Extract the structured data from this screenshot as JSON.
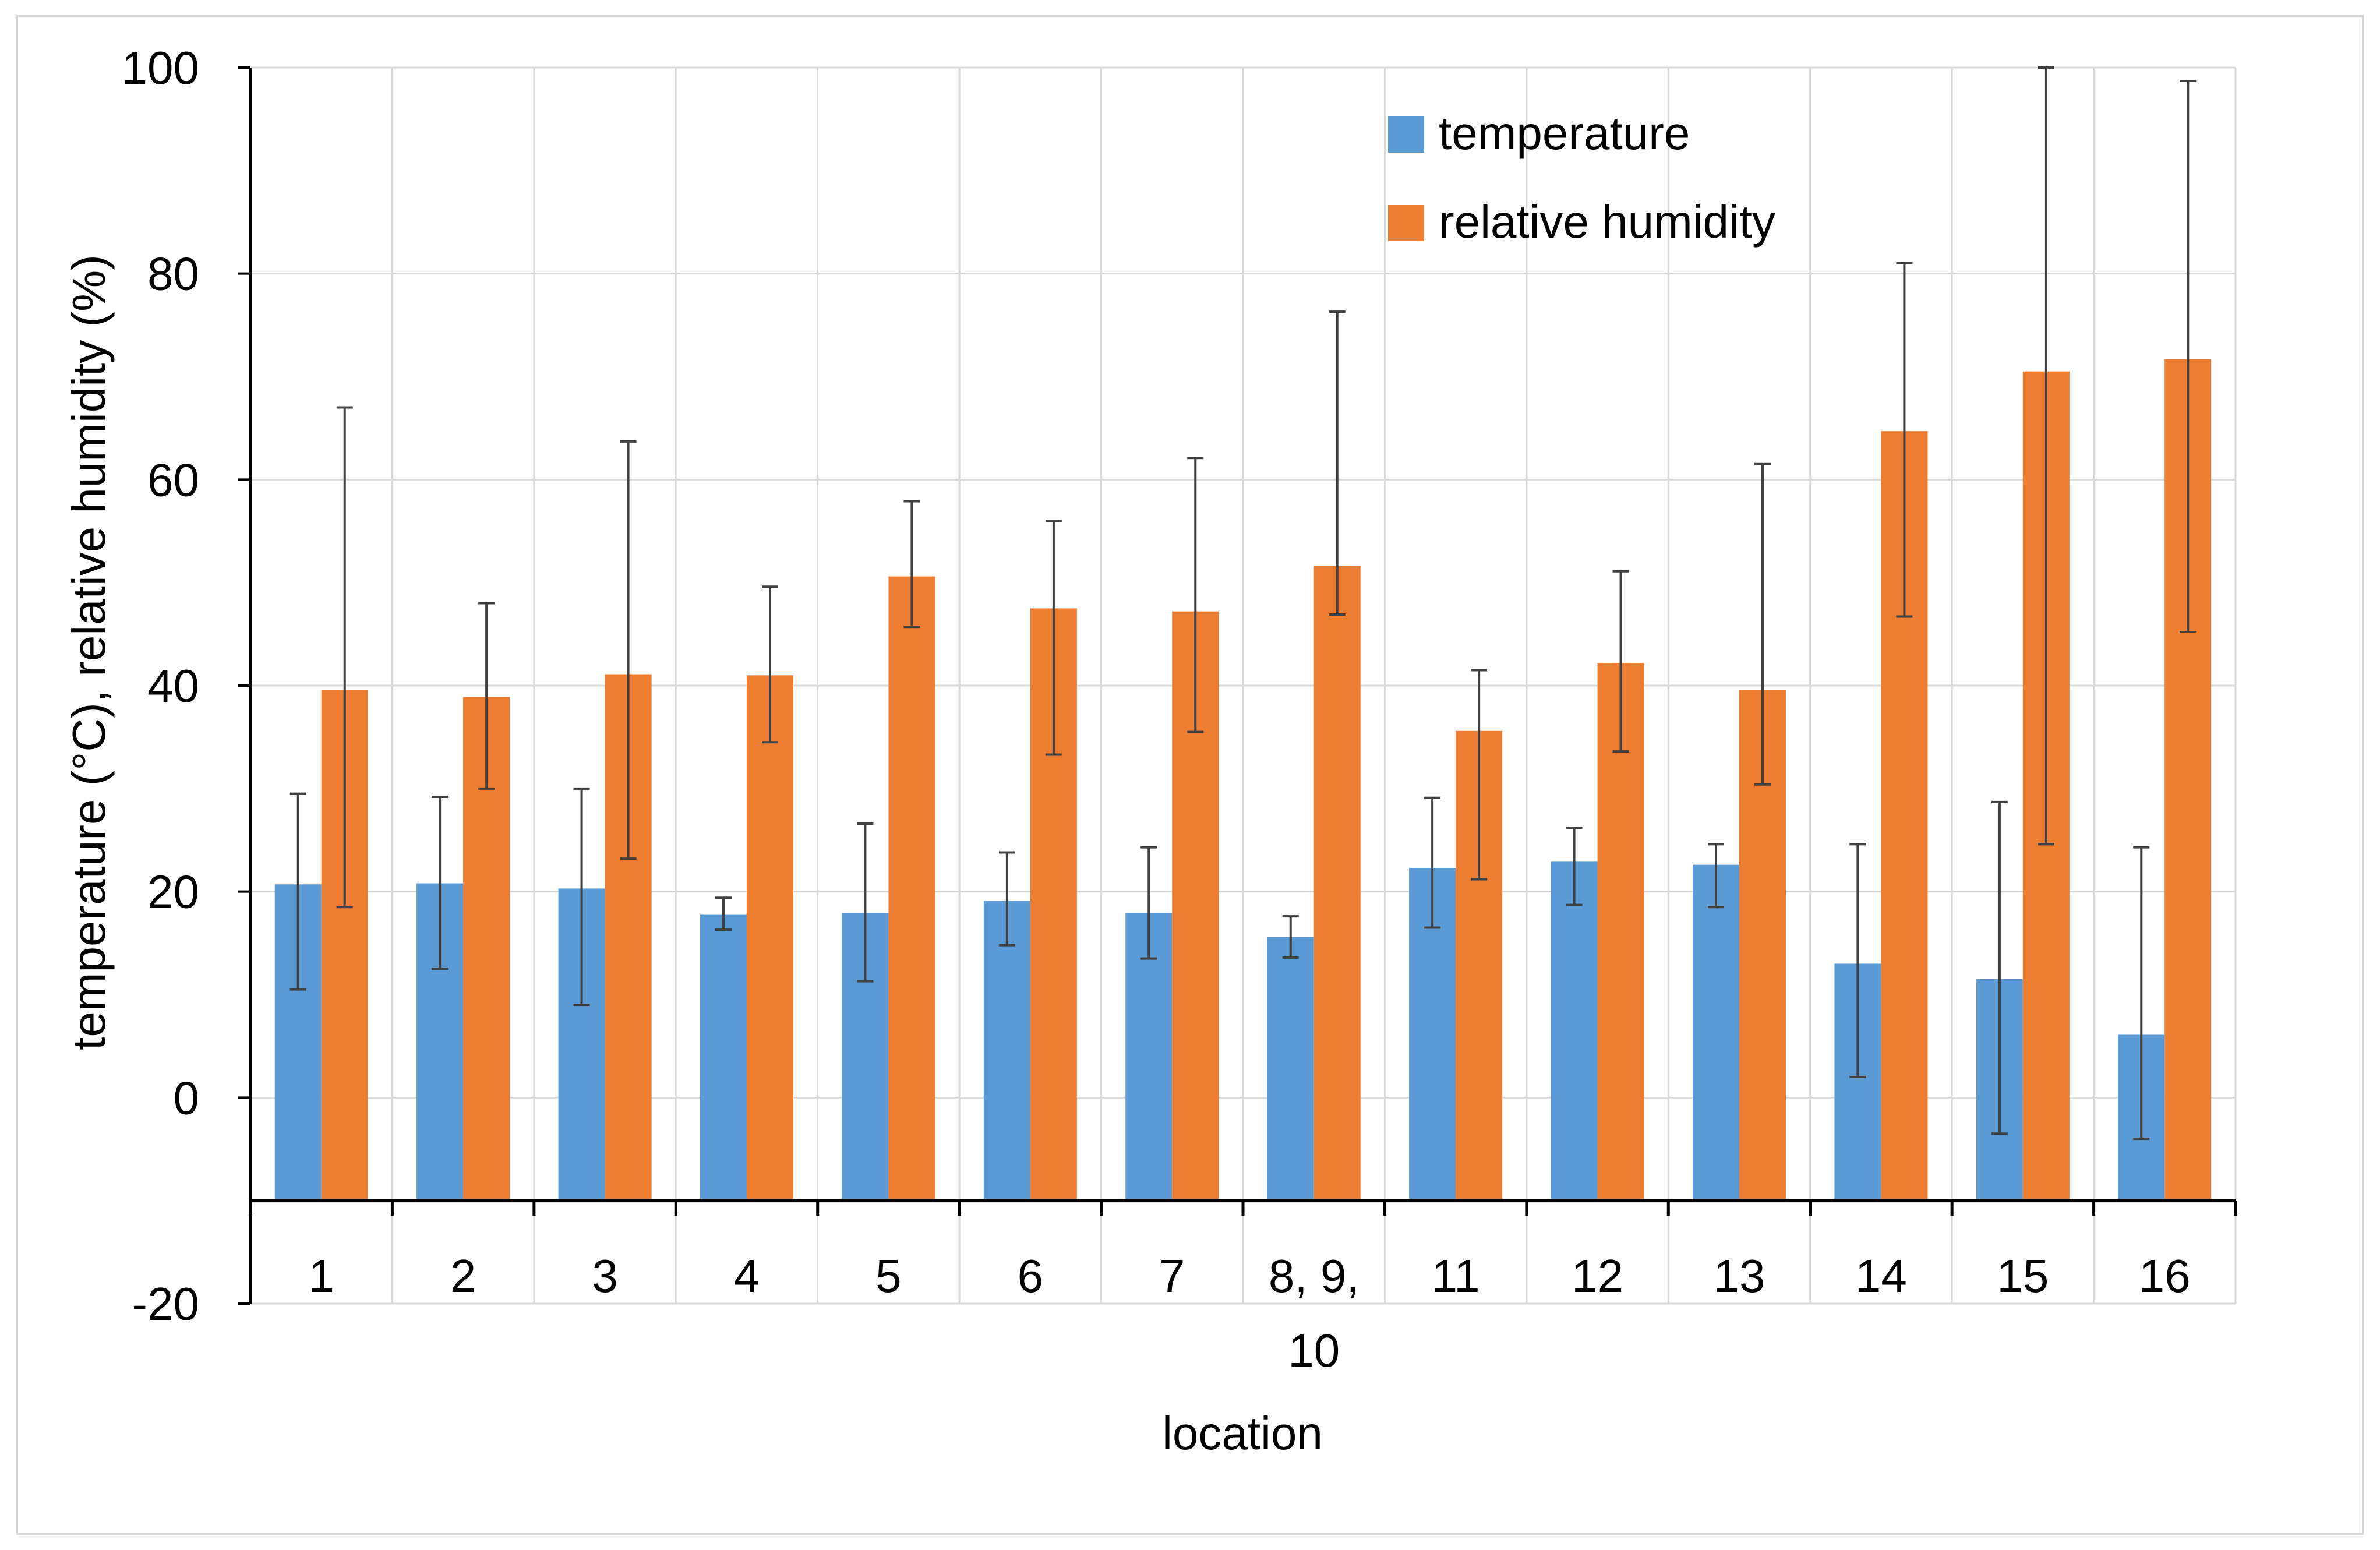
{
  "chart_data": {
    "type": "bar",
    "title": "",
    "xlabel": "location",
    "ylabel": "temperature (°C), relative humidity (%)",
    "ylim": [
      -20,
      100
    ],
    "yticks": [
      -20,
      0,
      20,
      40,
      60,
      80,
      100
    ],
    "grid": true,
    "legend_position": "top-right",
    "categories": [
      "1",
      "2",
      "3",
      "4",
      "5",
      "6",
      "7",
      "8, 9, 10",
      "11",
      "12",
      "13",
      "14",
      "15",
      "16"
    ],
    "series": [
      {
        "name": "temperature",
        "color": "#5b9bd5",
        "values": [
          20.7,
          20.8,
          20.3,
          17.8,
          17.9,
          19.1,
          17.9,
          15.6,
          22.3,
          22.9,
          22.6,
          13.0,
          11.5,
          6.1
        ],
        "error_low": [
          10.5,
          12.5,
          9.0,
          16.3,
          11.3,
          14.8,
          13.5,
          13.6,
          16.5,
          18.7,
          18.5,
          2.0,
          -3.5,
          -4.0
        ],
        "error_high": [
          29.5,
          29.2,
          30.0,
          19.4,
          26.6,
          23.8,
          24.3,
          17.6,
          29.1,
          26.2,
          24.6,
          24.6,
          28.7,
          24.3
        ]
      },
      {
        "name": "relative humidity",
        "color": "#ed7d31",
        "values": [
          39.6,
          38.9,
          41.1,
          41.0,
          50.6,
          47.5,
          47.2,
          51.6,
          35.6,
          42.2,
          39.6,
          64.7,
          70.5,
          71.7
        ],
        "error_low": [
          18.5,
          30.0,
          23.2,
          34.5,
          45.7,
          33.3,
          35.5,
          46.9,
          21.2,
          33.6,
          30.4,
          46.7,
          24.6,
          45.2
        ],
        "error_high": [
          67.0,
          48.0,
          63.7,
          49.6,
          57.9,
          56.0,
          62.1,
          76.3,
          41.5,
          51.1,
          61.5,
          81.0,
          100.0,
          98.7
        ]
      }
    ]
  }
}
